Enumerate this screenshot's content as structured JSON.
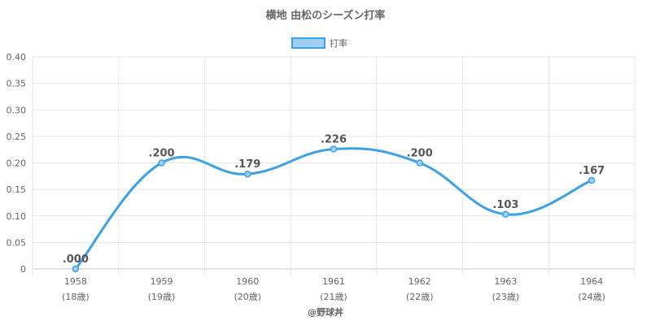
{
  "chart_data": {
    "type": "line",
    "title": "横地 由松のシーズン打率",
    "legend": {
      "label": "打率",
      "position": "top"
    },
    "colors": {
      "line": "#3ca2e4",
      "legend_fill": "#9fcff3",
      "grid": "#e6e6e6",
      "axis": "#c8c8c8"
    },
    "x": [
      "1958",
      "1959",
      "1960",
      "1961",
      "1962",
      "1963",
      "1964"
    ],
    "x_sub": [
      "(18歳)",
      "(19歳)",
      "(20歳)",
      "(21歳)",
      "(22歳)",
      "(23歳)",
      "(24歳)"
    ],
    "series": [
      {
        "name": "打率",
        "values": [
          0.0,
          0.2,
          0.179,
          0.226,
          0.2,
          0.103,
          0.167
        ]
      }
    ],
    "data_labels": [
      ".000",
      ".200",
      ".179",
      ".226",
      ".200",
      ".103",
      ".167"
    ],
    "y_ticks": [
      "0",
      "0.05",
      "0.10",
      "0.15",
      "0.20",
      "0.25",
      "0.30",
      "0.35",
      "0.40"
    ],
    "ylim": [
      0,
      0.4
    ],
    "grid": true
  },
  "credit": "@野球丼"
}
